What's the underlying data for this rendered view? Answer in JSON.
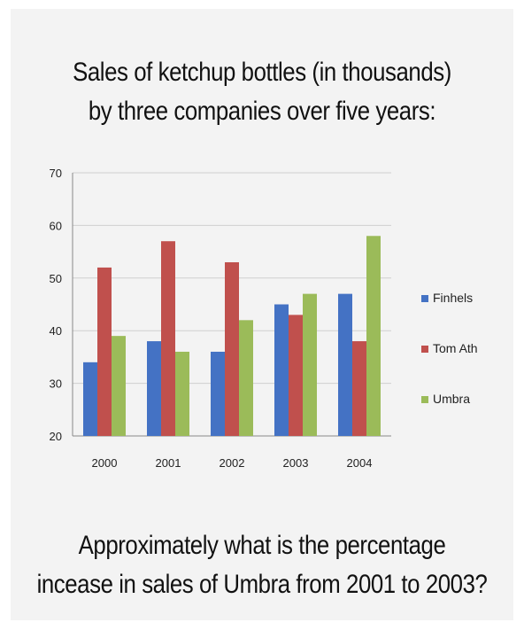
{
  "title_line1": "Sales of ketchup bottles (in thousands)",
  "title_line2": "by three companies over five years:",
  "question_line1": "Approximately what is the percentage",
  "question_line2": "incease in sales of Umbra from 2001 to 2003?",
  "chart_data": {
    "type": "bar",
    "title": "Sales of ketchup bottles (in thousands) by three companies over five years:",
    "xlabel": "",
    "ylabel": "",
    "categories": [
      "2000",
      "2001",
      "2002",
      "2003",
      "2004"
    ],
    "series": [
      {
        "name": "Finhels",
        "color": "#4472c4",
        "values": [
          34,
          38,
          36,
          45,
          47
        ]
      },
      {
        "name": "Tom Ath",
        "color": "#c0504d",
        "values": [
          52,
          57,
          53,
          43,
          38
        ]
      },
      {
        "name": "Umbra",
        "color": "#9bbb59",
        "values": [
          39,
          36,
          42,
          47,
          58
        ]
      }
    ],
    "ylim": [
      20,
      70
    ],
    "yticks": [
      20,
      30,
      40,
      50,
      60,
      70
    ],
    "grid": true,
    "legend": "right"
  }
}
